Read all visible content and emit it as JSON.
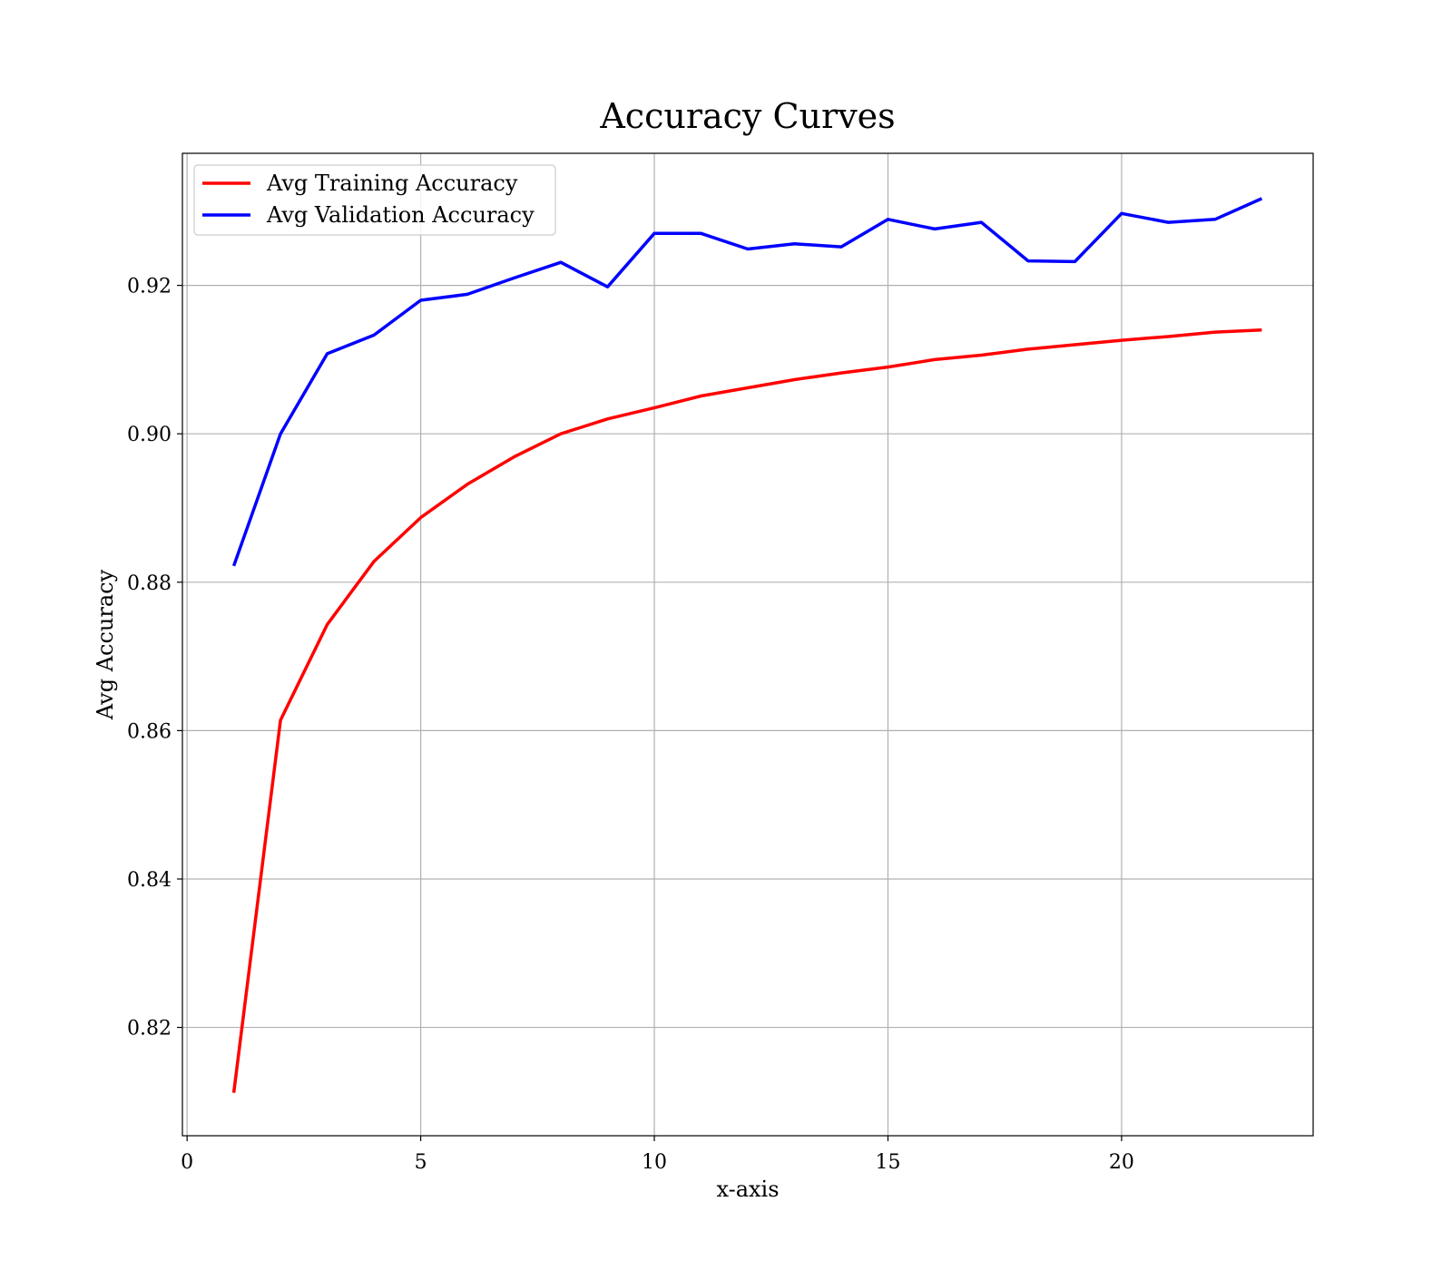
{
  "chart_data": {
    "type": "line",
    "title": "Accuracy Curves",
    "xlabel": "x-axis",
    "ylabel": "Avg Accuracy",
    "xlim": [
      -0.1,
      24.1
    ],
    "ylim": [
      0.8054,
      0.9378
    ],
    "xticks": [
      0,
      5,
      10,
      15,
      20
    ],
    "xtick_labels": [
      "0",
      "5",
      "10",
      "15",
      "20"
    ],
    "yticks": [
      0.82,
      0.84,
      0.86,
      0.88,
      0.9,
      0.92
    ],
    "ytick_labels": [
      "0.82",
      "0.84",
      "0.86",
      "0.88",
      "0.90",
      "0.92"
    ],
    "grid": true,
    "legend_position": "upper-left",
    "x": [
      1,
      2,
      3,
      4,
      5,
      6,
      7,
      8,
      9,
      10,
      11,
      12,
      13,
      14,
      15,
      16,
      17,
      18,
      19,
      20,
      21,
      22,
      23
    ],
    "series": [
      {
        "name": "Avg Training Accuracy",
        "color": "#ff0000",
        "values": [
          0.8112,
          0.8614,
          0.8743,
          0.8828,
          0.8887,
          0.8932,
          0.8969,
          0.9,
          0.902,
          0.9035,
          0.9051,
          0.9062,
          0.9073,
          0.9082,
          0.909,
          0.91,
          0.9106,
          0.9114,
          0.912,
          0.9126,
          0.9131,
          0.9137,
          0.914
        ]
      },
      {
        "name": "Avg Validation Accuracy",
        "color": "#0000ff",
        "values": [
          0.8822,
          0.9,
          0.9108,
          0.9133,
          0.918,
          0.9188,
          0.921,
          0.9231,
          0.9198,
          0.927,
          0.927,
          0.9249,
          0.9256,
          0.9252,
          0.9289,
          0.9276,
          0.9285,
          0.9233,
          0.9232,
          0.9297,
          0.9285,
          0.9289,
          0.9317
        ]
      }
    ]
  }
}
